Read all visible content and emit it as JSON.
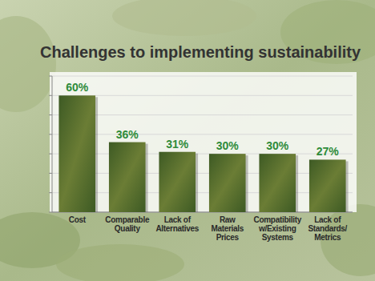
{
  "chart_data": {
    "type": "bar",
    "title": "Challenges to implementing sustainability",
    "categories": [
      "Cost",
      "Comparable\nQuality",
      "Lack of\nAlternatives",
      "Raw\nMaterials\nPrices",
      "Compatibility\nw/Existing\nSystems",
      "Lack of\nStandards/\nMetrics"
    ],
    "values": [
      60,
      36,
      31,
      30,
      30,
      27
    ],
    "value_labels": [
      "60%",
      "36%",
      "31%",
      "30%",
      "30%",
      "27%"
    ],
    "color": "#3d5a24",
    "ylim": [
      0,
      70
    ],
    "yticks": [
      0,
      10,
      20,
      30,
      40,
      50,
      60,
      70
    ],
    "grid": true,
    "data_labels": true,
    "tick_labels": "x"
  }
}
